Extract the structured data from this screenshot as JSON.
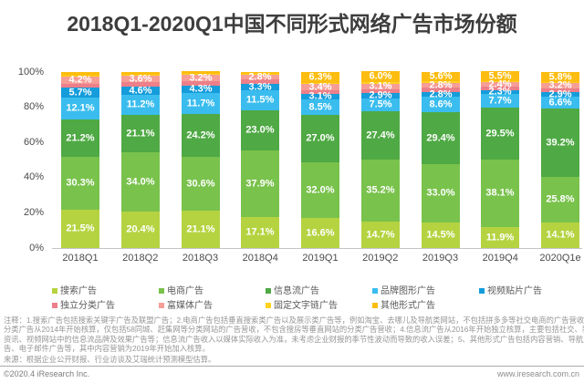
{
  "title": "2018Q1-2020Q1中国不同形式网络广告市场份额",
  "chart_data": {
    "type": "bar",
    "stacked": true,
    "title": "2018Q1-2020Q1中国不同形式网络广告市场份额",
    "xlabel": "",
    "ylabel": "",
    "ylim": [
      0,
      100
    ],
    "grid": false,
    "legend_position": "bottom",
    "y_axis_ticks": [
      "0%",
      "20%",
      "40%",
      "60%",
      "80%",
      "100%"
    ],
    "y_axis_tick_values": [
      0,
      20,
      40,
      60,
      80,
      100
    ],
    "categories": [
      "2018Q1",
      "2018Q2",
      "2018Q3",
      "2018Q4",
      "2019Q1",
      "2019Q2",
      "2019Q3",
      "2019Q4",
      "2020Q1e"
    ],
    "series": [
      {
        "name": "搜索广告",
        "color": "#b5d340",
        "values": [
          21.5,
          20.4,
          21.1,
          17.1,
          16.6,
          14.7,
          14.5,
          11.9,
          14.1
        ],
        "labels": [
          "21.5%",
          "20.4%",
          "21.1%",
          "17.1%",
          "16.6%",
          "14.7%",
          "14.5%",
          "11.9%",
          "14.1%"
        ]
      },
      {
        "name": "电商广告",
        "color": "#79c24c",
        "values": [
          30.3,
          34.0,
          30.6,
          37.9,
          32.0,
          35.2,
          33.0,
          38.1,
          25.8
        ],
        "labels": [
          "30.3%",
          "34.0%",
          "30.6%",
          "37.9%",
          "32.0%",
          "35.2%",
          "33.0%",
          "38.1%",
          "25.8%"
        ]
      },
      {
        "name": "信息流广告",
        "color": "#4fa944",
        "values": [
          21.2,
          21.1,
          24.2,
          23.0,
          27.0,
          27.4,
          29.4,
          29.5,
          39.2
        ],
        "labels": [
          "21.2%",
          "21.1%",
          "24.2%",
          "23.0%",
          "27.0%",
          "27.4%",
          "29.4%",
          "29.5%",
          "39.2%"
        ]
      },
      {
        "name": "品牌图形广告",
        "color": "#3abdee",
        "values": [
          12.1,
          11.2,
          11.7,
          11.5,
          8.5,
          7.5,
          8.6,
          7.7,
          6.6
        ],
        "labels": [
          "12.1%",
          "11.2%",
          "11.7%",
          "11.5%",
          "8.5%",
          "7.5%",
          "8.6%",
          "7.7%",
          "6.6%"
        ]
      },
      {
        "name": "视频贴片广告",
        "color": "#149cdb",
        "values": [
          5.7,
          4.6,
          4.3,
          3.3,
          3.1,
          2.9,
          2.8,
          2.3,
          2.9
        ],
        "labels": [
          "5.7%",
          "4.6%",
          "4.3%",
          "3.3%",
          "3.1%",
          "2.9%",
          "2.8%",
          "2.3%",
          "2.9%"
        ]
      },
      {
        "name": "独立分类广告",
        "color": "#ec7f89",
        "values": [
          2.0,
          2.7,
          2.9,
          2.6,
          2.3,
          2.4,
          2.5,
          1.9,
          1.8
        ],
        "labels": [
          null,
          null,
          null,
          null,
          null,
          null,
          null,
          null,
          null
        ]
      },
      {
        "name": "富媒体广告",
        "color": "#f69d96",
        "values": [
          4.2,
          3.6,
          3.2,
          2.8,
          3.4,
          3.1,
          2.8,
          2.4,
          3.2
        ],
        "labels": [
          "4.2%",
          "3.6%",
          "3.2%",
          "2.8%",
          "3.4%",
          "3.1%",
          "2.8%",
          "2.4%",
          "3.2%"
        ]
      },
      {
        "name": "固定文字链广告",
        "color": "#ffd21c",
        "values": [
          0.8,
          0.7,
          0.6,
          0.5,
          0.8,
          0.8,
          0.8,
          0.7,
          0.6
        ],
        "labels": [
          null,
          null,
          null,
          null,
          null,
          null,
          null,
          null,
          null
        ]
      },
      {
        "name": "其他形式广告",
        "color": "#fdbd10",
        "values": [
          2.2,
          1.7,
          1.4,
          1.3,
          6.3,
          6.0,
          5.6,
          5.5,
          5.8
        ],
        "labels": [
          null,
          null,
          null,
          null,
          "6.3%",
          "6.0%",
          "5.6%",
          "5.5%",
          "5.8%"
        ]
      }
    ],
    "legend_rows": [
      [
        0,
        1,
        2,
        3,
        4
      ],
      [
        5,
        6,
        7,
        8
      ]
    ]
  },
  "footnote_lines": [
    "注释：1.搜索广告包括搜索关键字广告及联盟广告；2.电商广告包括垂直搜索类广告以及展示类广告等，例如淘宝、去哪儿及导航类网站，不包括拼多多等社交电商的广告营收；3.",
    "分类广告从2014年开始核算，仅包括58同城、赶集网等分类网站的广告营收，不包含搜房等垂直网站的分类广告营收；4.信息流广告从2016年开始独立核算，主要包括社交、新闻",
    "资讯、视频网站中的信息流品牌及效果广告等；信息流广告收入以媒体实际收入为准，未考虑企业财报的季节性波动而导致的收入误差；5、其他形式广告包括内容营销、导航广",
    "告、电子邮件广告等，其中内容营销为2019年开始加入核算。"
  ],
  "source_note": "来源：根据企业公开财报、行业访谈及艾瑞统计预测模型估算。",
  "footer": {
    "copyright": "©2020.4 iResearch Inc.",
    "website": "www.iresearch.com.cn"
  }
}
